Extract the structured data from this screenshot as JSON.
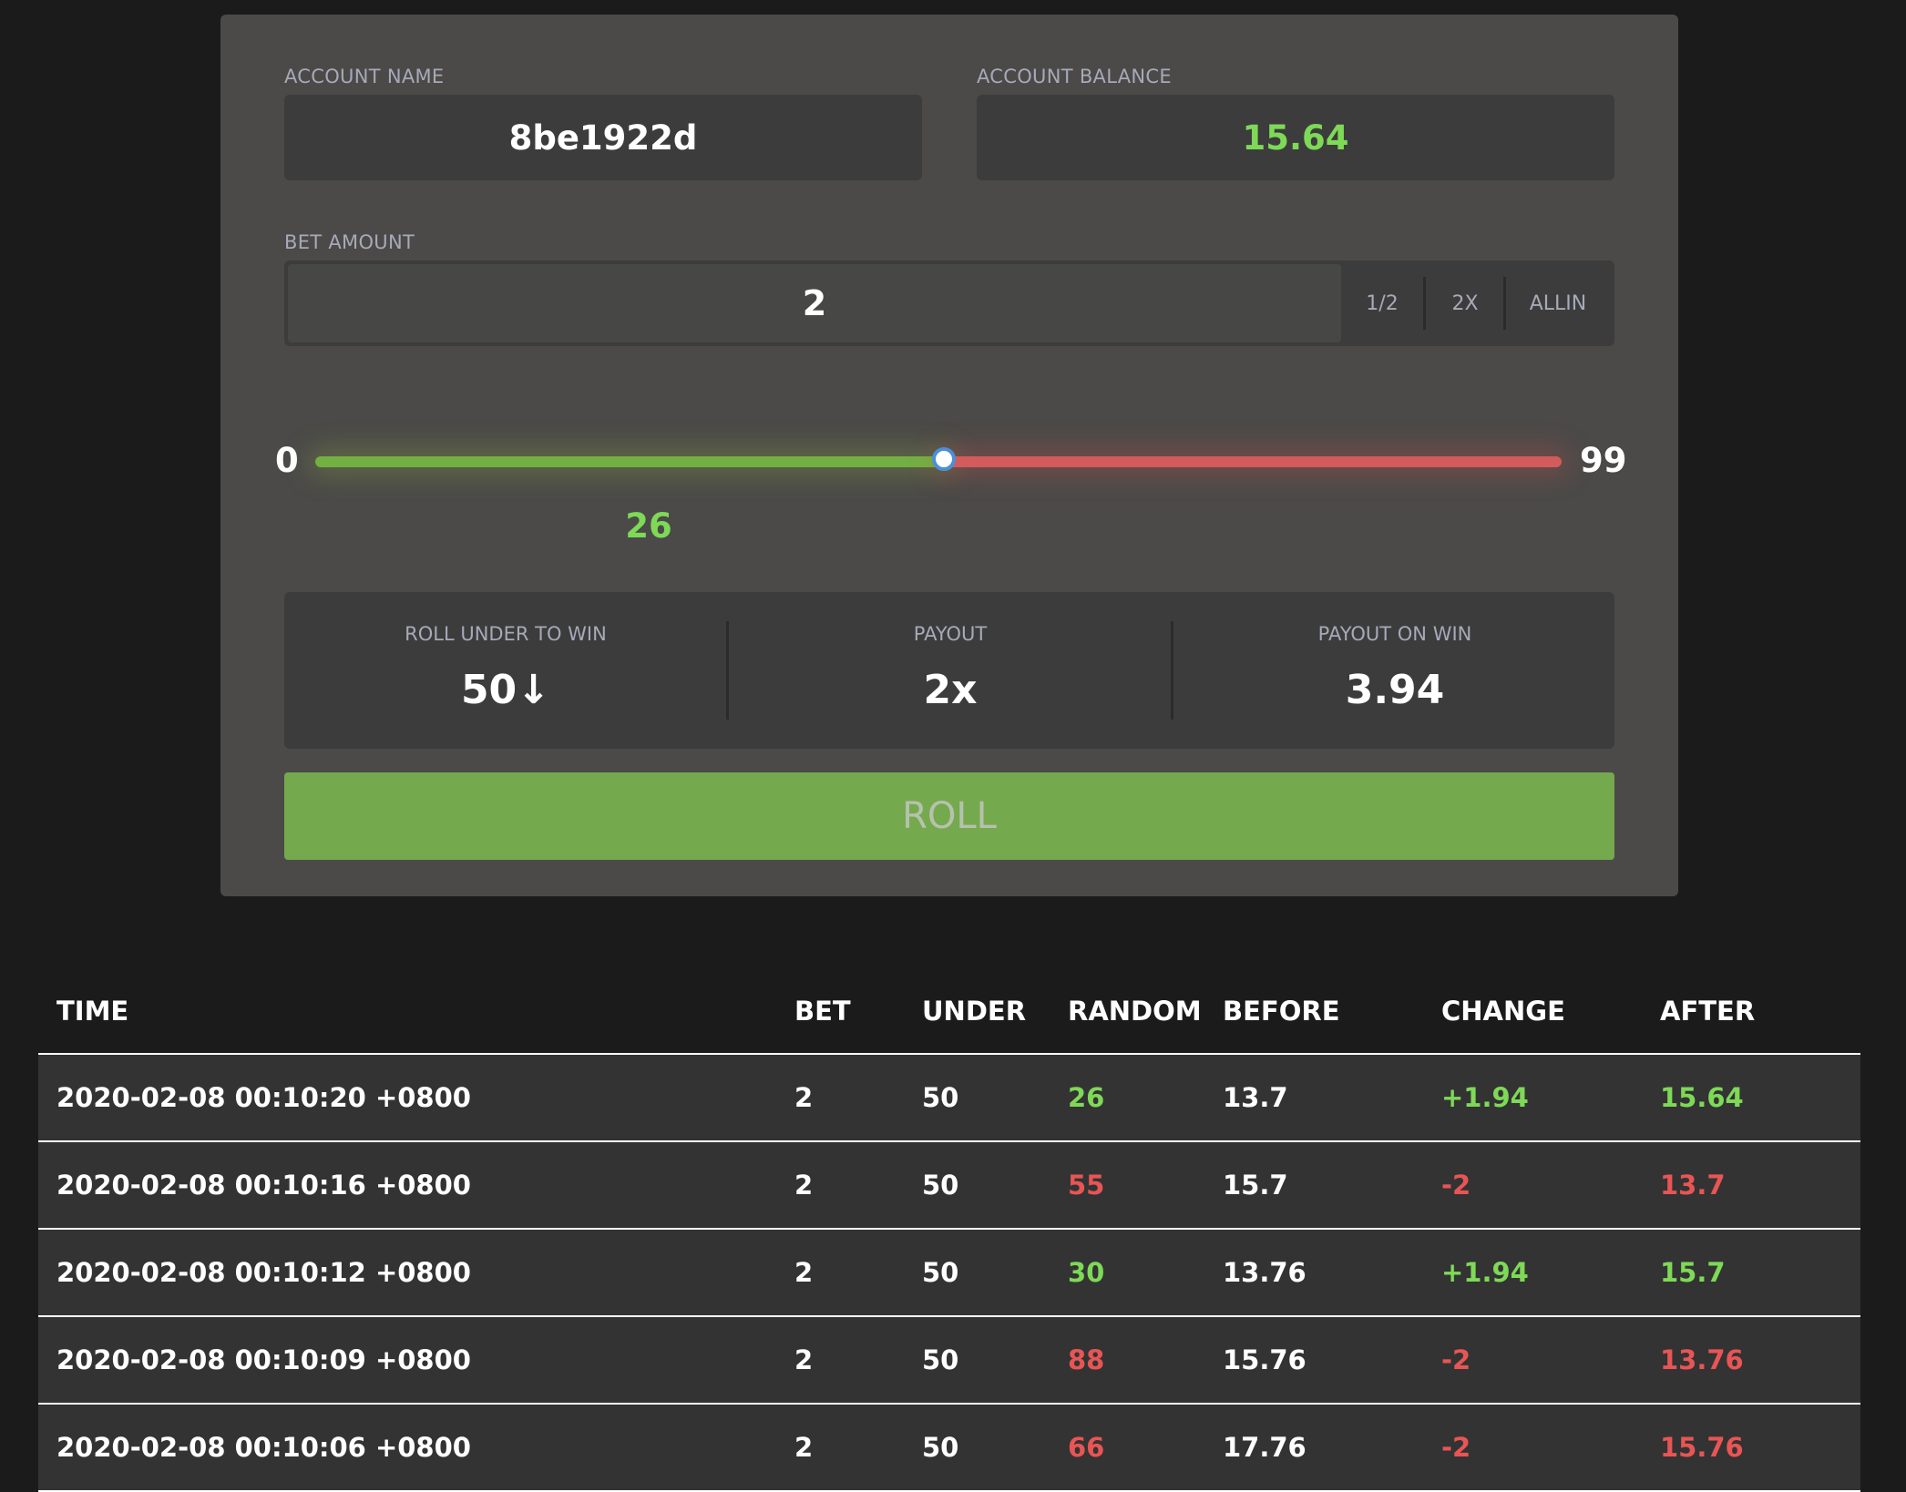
{
  "account": {
    "name_label": "ACCOUNT NAME",
    "name_value": "8be1922d",
    "balance_label": "ACCOUNT BALANCE",
    "balance_value": "15.64",
    "balance_color": "#7ed957"
  },
  "bet": {
    "label": "BET AMOUNT",
    "value": "2",
    "half_label": "1/2",
    "double_label": "2X",
    "allin_label": "ALLIN"
  },
  "slider": {
    "min_label": "0",
    "max_label": "99",
    "result_value": "26",
    "target": 50,
    "min": 0,
    "max": 99,
    "win_color": "#72b042",
    "lose_color": "#d35b5b"
  },
  "stats": {
    "roll_under_label": "ROLL UNDER TO WIN",
    "roll_under_value": "50↓",
    "payout_label": "PAYOUT",
    "payout_value": "2x",
    "payout_on_win_label": "PAYOUT ON WIN",
    "payout_on_win_value": "3.94"
  },
  "roll_button_label": "ROLL",
  "history": {
    "headers": {
      "time": "TIME",
      "bet": "BET",
      "under": "UNDER",
      "random": "RANDOM",
      "before": "BEFORE",
      "change": "CHANGE",
      "after": "AFTER"
    },
    "rows": [
      {
        "time": "2020-02-08 00:10:20 +0800",
        "bet": "2",
        "under": "50",
        "random": "26",
        "before": "13.7",
        "change": "+1.94",
        "after": "15.64",
        "result": "win"
      },
      {
        "time": "2020-02-08 00:10:16 +0800",
        "bet": "2",
        "under": "50",
        "random": "55",
        "before": "15.7",
        "change": "-2",
        "after": "13.7",
        "result": "loss"
      },
      {
        "time": "2020-02-08 00:10:12 +0800",
        "bet": "2",
        "under": "50",
        "random": "30",
        "before": "13.76",
        "change": "+1.94",
        "after": "15.7",
        "result": "win"
      },
      {
        "time": "2020-02-08 00:10:09 +0800",
        "bet": "2",
        "under": "50",
        "random": "88",
        "before": "15.76",
        "change": "-2",
        "after": "13.76",
        "result": "loss"
      },
      {
        "time": "2020-02-08 00:10:06 +0800",
        "bet": "2",
        "under": "50",
        "random": "66",
        "before": "17.76",
        "change": "-2",
        "after": "15.76",
        "result": "loss"
      }
    ]
  }
}
